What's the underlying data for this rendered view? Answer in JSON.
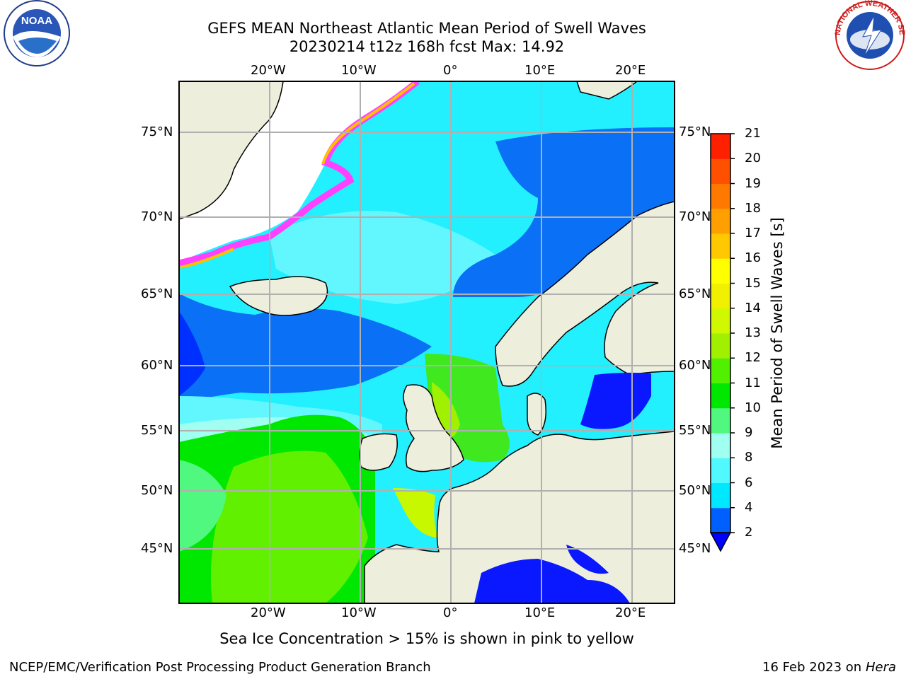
{
  "title": {
    "line1": "GEFS MEAN Northeast Atlantic Mean Period of Swell Waves",
    "line2": "20230214 t12z 168h fcst   Max: 14.92"
  },
  "map": {
    "lon_ticks": [
      "20°W",
      "10°W",
      "0°",
      "10°E",
      "20°E"
    ],
    "lat_ticks": [
      "75°N",
      "70°N",
      "65°N",
      "60°N",
      "55°N",
      "50°N",
      "45°N"
    ]
  },
  "colorbar": {
    "title": "Mean Period of Swell Waves [s]",
    "levels": [
      "2",
      "4",
      "6",
      "8",
      "9",
      "10",
      "11",
      "12",
      "13",
      "14",
      "15",
      "16",
      "17",
      "18",
      "19",
      "20",
      "21"
    ],
    "colors": [
      "#0060ff",
      "#00e8ff",
      "#50f8ff",
      "#a0fff0",
      "#50f880",
      "#00e800",
      "#50f000",
      "#a0f000",
      "#d0f800",
      "#f0f000",
      "#ffff00",
      "#ffc800",
      "#ffa000",
      "#ff7800",
      "#ff5000",
      "#ff2000"
    ],
    "extend_color": "#0000ff"
  },
  "note": "Sea Ice Concentration > 15% is shown in pink to yellow",
  "footer": {
    "left": "NCEP/EMC/Verification Post Processing Product Generation Branch",
    "right_date": "16 Feb 2023 on",
    "right_host": "Hera"
  },
  "logos": {
    "noaa_text": "NOAA",
    "nws_text": "NATIONAL WEATHER SERVICE"
  }
}
